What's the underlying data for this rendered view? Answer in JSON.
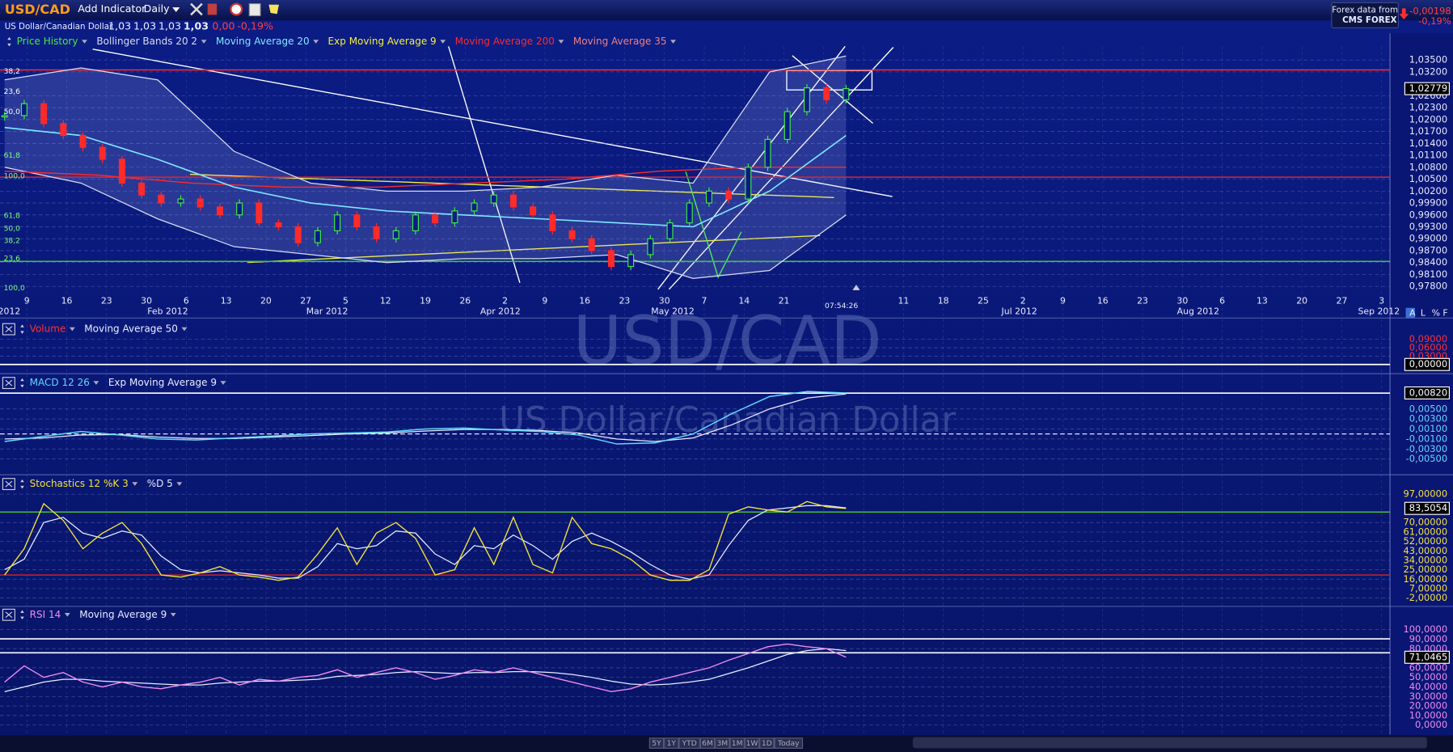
{
  "toolbar": {
    "symbol": "USD/CAD",
    "add_indicator": "Add Indicator",
    "interval": "Daily",
    "source_label": "Forex data from",
    "source_name": "CMS FOREX",
    "change": "-0,00198",
    "change_pct": "-0,19%"
  },
  "quote": {
    "name": "US Dollar/Canadian Dollar",
    "open": "1,03",
    "high": "1,03",
    "low": "1,03",
    "last": "1,03",
    "change": "0,00",
    "change_pct": "-0,19%"
  },
  "watermark": {
    "symbol": "USD/CAD",
    "name": "US Dollar/Canadian Dollar"
  },
  "price_panel": {
    "legend": [
      {
        "name": "Price History",
        "color": "#3df03d"
      },
      {
        "name": "Bollinger Bands 20 2",
        "color": "#d8dcf0"
      },
      {
        "name": "Moving Average 20",
        "color": "#7fe8ff"
      },
      {
        "name": "Exp Moving Average 9",
        "color": "#f5f03a"
      },
      {
        "name": "Moving Average 200",
        "color": "#ff2a2a"
      },
      {
        "name": "Moving Average 35",
        "color": "#f08080"
      }
    ],
    "ylim": [
      0.9775,
      1.0375
    ],
    "yticks": [
      {
        "value": 1.035,
        "label": "1,03500"
      },
      {
        "value": 1.032,
        "label": "1,03200"
      },
      {
        "value": 1.026,
        "label": "1,02600"
      },
      {
        "value": 1.023,
        "label": "1,02300"
      },
      {
        "value": 1.02,
        "label": "1,02000"
      },
      {
        "value": 1.017,
        "label": "1,01700"
      },
      {
        "value": 1.014,
        "label": "1,01400"
      },
      {
        "value": 1.011,
        "label": "1,01100"
      },
      {
        "value": 1.008,
        "label": "1,00800"
      },
      {
        "value": 1.005,
        "label": "1,00500"
      },
      {
        "value": 1.002,
        "label": "1,00200"
      },
      {
        "value": 0.999,
        "label": "0,99900"
      },
      {
        "value": 0.996,
        "label": "0,99600"
      },
      {
        "value": 0.993,
        "label": "0,99300"
      },
      {
        "value": 0.99,
        "label": "0,99000"
      },
      {
        "value": 0.987,
        "label": "0,98700"
      },
      {
        "value": 0.984,
        "label": "0,98400"
      },
      {
        "value": 0.981,
        "label": "0,98100"
      },
      {
        "value": 0.978,
        "label": "0,97800"
      }
    ],
    "current": {
      "value": 1.02779,
      "label": "1,02779"
    },
    "closes": [
      1.021,
      1.024,
      1.019,
      1.016,
      1.013,
      1.01,
      1.004,
      1.001,
      0.999,
      1.0,
      0.998,
      0.996,
      0.999,
      0.994,
      0.993,
      0.989,
      0.992,
      0.996,
      0.993,
      0.99,
      0.992,
      0.996,
      0.994,
      0.997,
      0.999,
      1.001,
      0.998,
      0.996,
      0.992,
      0.99,
      0.987,
      0.983,
      0.986,
      0.99,
      0.994,
      0.999,
      1.002,
      1.0,
      1.008,
      1.015,
      1.022,
      1.028,
      1.025,
      1.02779
    ],
    "upper_band": [
      1.03,
      1.033,
      1.03,
      1.012,
      1.004,
      1.002,
      1.002,
      1.003,
      1.006,
      1.004,
      1.032,
      1.036
    ],
    "lower_band": [
      1.008,
      1.004,
      0.995,
      0.988,
      0.986,
      0.984,
      0.985,
      0.985,
      0.986,
      0.98,
      0.982,
      0.996
    ],
    "ma20": [
      1.018,
      1.016,
      1.01,
      1.003,
      0.999,
      0.997,
      0.996,
      0.995,
      0.994,
      0.993,
      1.002,
      1.016
    ],
    "ma200": [
      1.007,
      1.006,
      1.004,
      1.003,
      1.003,
      1.004,
      1.005,
      1.007,
      1.008,
      1.008
    ],
    "levels": [
      {
        "value": 1.0325,
        "color": "#ff2b2b"
      },
      {
        "value": 1.0055,
        "color": "#e0262f"
      },
      {
        "value": 0.9843,
        "color": "#2fd12f"
      }
    ],
    "fib_labels": [
      "38,2",
      "23,6",
      "50,0",
      "61,8",
      "100,0",
      "61,8",
      "50,0",
      "38,2",
      "23,6",
      "100,0"
    ],
    "x_days": [
      "9",
      "16",
      "23",
      "30",
      "6",
      "13",
      "20",
      "27",
      "5",
      "12",
      "19",
      "26",
      "2",
      "9",
      "16",
      "23",
      "30",
      "7",
      "14",
      "21",
      null,
      null,
      "11",
      "18",
      "25",
      "2",
      "9",
      "16",
      "23",
      "30",
      "6",
      "13",
      "20",
      "27",
      "3"
    ],
    "x_months": [
      "2012",
      "Feb 2012",
      "Mar 2012",
      "Apr 2012",
      "May 2012",
      "Jul 2012",
      "Aug 2012",
      "Sep 2012"
    ],
    "time_label": "07:54:26"
  },
  "volume_panel": {
    "legend": [
      {
        "name": "Volume",
        "color": "#ff3030"
      },
      {
        "name": "Moving Average 50",
        "color": "#e8ecff"
      }
    ],
    "ylim": [
      -0.023,
      0.143
    ],
    "yticks": [
      {
        "value": 0.09,
        "label": "0,09000"
      },
      {
        "value": 0.06,
        "label": "0,06000"
      },
      {
        "value": 0.03,
        "label": "0,03000"
      }
    ],
    "tick_color": "#ff3030",
    "current": {
      "value": 0,
      "label": "0,00000"
    }
  },
  "macd_panel": {
    "legend": [
      {
        "name": "MACD 12 26",
        "color": "#5fd8ff"
      },
      {
        "name": "Exp Moving Average 9",
        "color": "#e8ecff"
      }
    ],
    "ylim": [
      -0.00685,
      0.0089
    ],
    "yticks": [
      {
        "value": 0.005,
        "label": "0,00500"
      },
      {
        "value": 0.003,
        "label": "0,00300"
      },
      {
        "value": 0.001,
        "label": "0,00100"
      },
      {
        "value": -0.001,
        "label": "-0,00100"
      },
      {
        "value": -0.003,
        "label": "-0,00300"
      },
      {
        "value": -0.005,
        "label": "-0,00500"
      }
    ],
    "tick_color": "#5fd8ff",
    "current": {
      "value": 0.0082,
      "label": "0,00820"
    },
    "macd": [
      -0.0015,
      -0.0005,
      0.0005,
      -0.0002,
      -0.001,
      -0.0012,
      -0.0008,
      -0.0004,
      0.0,
      0.0002,
      0.0004,
      0.001,
      0.0012,
      0.0008,
      0.0005,
      -0.0002,
      -0.002,
      -0.0018,
      0.0,
      0.004,
      0.0075,
      0.0085,
      0.0082
    ],
    "signal": [
      -0.001,
      -0.0008,
      -0.0002,
      -0.0001,
      -0.0006,
      -0.0009,
      -0.0009,
      -0.0006,
      -0.0003,
      0.0,
      0.0002,
      0.0006,
      0.0009,
      0.0009,
      0.0007,
      0.0002,
      -0.001,
      -0.0015,
      -0.0008,
      0.0018,
      0.005,
      0.0072,
      0.008
    ]
  },
  "stoch_panel": {
    "legend": [
      {
        "name": "Stochastics 12 %K 3",
        "color": "#f5e23a"
      },
      {
        "name": "%D 5",
        "color": "#e8ecff"
      }
    ],
    "ylim": [
      -8.2,
      108.5
    ],
    "yticks": [
      {
        "value": 97,
        "label": "97,00000"
      },
      {
        "value": 70,
        "label": "70,00000"
      },
      {
        "value": 61,
        "label": "61,00000"
      },
      {
        "value": 52,
        "label": "52,00000"
      },
      {
        "value": 43,
        "label": "43,00000"
      },
      {
        "value": 34,
        "label": "34,00000"
      },
      {
        "value": 25,
        "label": "25,00000"
      },
      {
        "value": 16,
        "label": "16,00000"
      },
      {
        "value": 7,
        "label": "7,00000"
      },
      {
        "value": -2,
        "label": "-2,00000"
      }
    ],
    "tick_color": "#f5e23a",
    "current": {
      "value": 83.5054,
      "label": "83,5054"
    },
    "levels": [
      {
        "value": 80,
        "color": "#3cc03c"
      },
      {
        "value": 20,
        "color": "#d02020"
      }
    ],
    "k": [
      20,
      45,
      88,
      72,
      45,
      60,
      70,
      50,
      20,
      18,
      22,
      28,
      20,
      18,
      15,
      18,
      40,
      65,
      30,
      60,
      70,
      55,
      20,
      25,
      65,
      30,
      75,
      30,
      22,
      75,
      50,
      45,
      35,
      20,
      15,
      15,
      25,
      78,
      85,
      82,
      80,
      90,
      85,
      83.5054
    ],
    "d": [
      25,
      35,
      70,
      75,
      60,
      55,
      62,
      58,
      38,
      25,
      22,
      24,
      22,
      20,
      17,
      17,
      28,
      50,
      45,
      48,
      62,
      60,
      40,
      30,
      48,
      45,
      58,
      48,
      35,
      52,
      60,
      52,
      42,
      30,
      20,
      16,
      20,
      48,
      72,
      82,
      84,
      86,
      86,
      84
    ]
  },
  "rsi_panel": {
    "legend": [
      {
        "name": "RSI 14",
        "color": "#f08cf0"
      },
      {
        "name": "Moving Average 9",
        "color": "#e8ecff"
      }
    ],
    "ylim": [
      -7.8,
      110.7
    ],
    "yticks": [
      {
        "value": 100,
        "label": "100,0000"
      },
      {
        "value": 90,
        "label": "90,0000"
      },
      {
        "value": 80,
        "label": "80,0000"
      },
      {
        "value": 60,
        "label": "60,0000"
      },
      {
        "value": 50,
        "label": "50,0000"
      },
      {
        "value": 40,
        "label": "40,0000"
      },
      {
        "value": 30,
        "label": "30,0000"
      },
      {
        "value": 20,
        "label": "20,0000"
      },
      {
        "value": 10,
        "label": "10,0000"
      },
      {
        "value": 0,
        "label": "0,0000"
      }
    ],
    "tick_color": "#f08cf0",
    "current": {
      "value": 71.0465,
      "label": "71,0465"
    },
    "rsi": [
      45,
      62,
      50,
      55,
      45,
      40,
      45,
      40,
      38,
      42,
      45,
      50,
      42,
      48,
      46,
      50,
      52,
      58,
      50,
      55,
      60,
      55,
      48,
      52,
      58,
      55,
      60,
      55,
      50,
      45,
      40,
      35,
      38,
      45,
      50,
      55,
      60,
      68,
      75,
      82,
      85,
      82,
      80,
      71.0465
    ],
    "ma": [
      35,
      40,
      45,
      48,
      48,
      46,
      45,
      44,
      43,
      42,
      42,
      44,
      45,
      46,
      46,
      47,
      48,
      51,
      52,
      53,
      55,
      56,
      55,
      54,
      55,
      55,
      56,
      56,
      55,
      53,
      50,
      46,
      43,
      42,
      43,
      45,
      48,
      54,
      60,
      67,
      74,
      78,
      80,
      78
    ]
  },
  "range_buttons": [
    "5Y",
    "1Y",
    "YTD",
    "6M",
    "3M",
    "1M",
    "1W",
    "1D",
    "Today"
  ],
  "scale_buttons": [
    "A",
    "L",
    "%",
    "F"
  ]
}
